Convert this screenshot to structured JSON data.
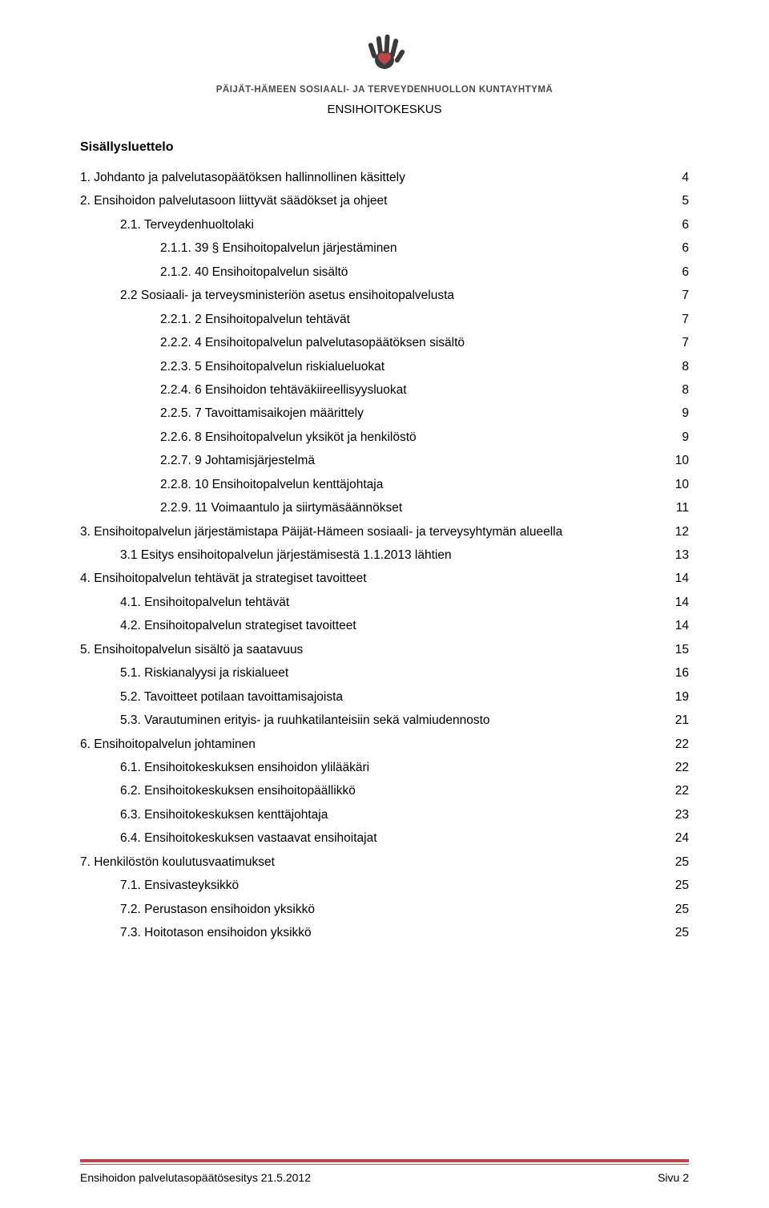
{
  "header": {
    "org_name": "PÄIJÄT-HÄMEEN SOSIAALI- JA TERVEYDENHUOLLON KUNTAYHTYMÄ",
    "subtitle": "ENSIHOITOKESKUS",
    "logo_colors": {
      "hand": "#3b3b3b",
      "heart": "#b9474b"
    }
  },
  "toc_title": "Sisällysluettelo",
  "toc": [
    {
      "level": 0,
      "label": "1. Johdanto ja palvelutasopäätöksen hallinnollinen käsittely",
      "page": "4"
    },
    {
      "level": 0,
      "label": "2. Ensihoidon palvelutasoon liittyvät säädökset ja ohjeet",
      "page": "5"
    },
    {
      "level": 1,
      "label": "2.1. Terveydenhuoltolaki",
      "page": "6"
    },
    {
      "level": 2,
      "label": "2.1.1. 39 § Ensihoitopalvelun järjestäminen",
      "page": "6"
    },
    {
      "level": 2,
      "label": "2.1.2. 40 Ensihoitopalvelun sisältö",
      "page": "6"
    },
    {
      "level": 1,
      "label": "2.2 Sosiaali- ja terveysministeriön asetus ensihoitopalvelusta",
      "page": "7"
    },
    {
      "level": 2,
      "label": "2.2.1. 2 Ensihoitopalvelun tehtävät",
      "page": "7"
    },
    {
      "level": 2,
      "label": "2.2.2. 4 Ensihoitopalvelun palvelutasopäätöksen sisältö",
      "page": "7"
    },
    {
      "level": 2,
      "label": "2.2.3. 5 Ensihoitopalvelun riskialueluokat",
      "page": "8"
    },
    {
      "level": 2,
      "label": "2.2.4. 6 Ensihoidon tehtäväkiireellisyysluokat",
      "page": "8"
    },
    {
      "level": 2,
      "label": "2.2.5. 7 Tavoittamisaikojen määrittely",
      "page": "9"
    },
    {
      "level": 2,
      "label": "2.2.6. 8 Ensihoitopalvelun yksiköt ja henkilöstö",
      "page": "9"
    },
    {
      "level": 2,
      "label": "2.2.7. 9 Johtamisjärjestelmä",
      "page": "10"
    },
    {
      "level": 2,
      "label": "2.2.8. 10 Ensihoitopalvelun kenttäjohtaja",
      "page": "10"
    },
    {
      "level": 2,
      "label": "2.2.9. 11 Voimaantulo ja siirtymäsäännökset",
      "page": "11"
    },
    {
      "level": 0,
      "label": "3. Ensihoitopalvelun järjestämistapa Päijät-Hämeen sosiaali- ja terveysyhtymän alueella",
      "page": "12"
    },
    {
      "level": 1,
      "label": "3.1 Esitys ensihoitopalvelun järjestämisestä 1.1.2013 lähtien",
      "page": "13"
    },
    {
      "level": 0,
      "label": "4. Ensihoitopalvelun tehtävät ja strategiset tavoitteet",
      "page": "14"
    },
    {
      "level": 1,
      "label": "4.1. Ensihoitopalvelun tehtävät",
      "page": "14"
    },
    {
      "level": 1,
      "label": "4.2. Ensihoitopalvelun strategiset tavoitteet",
      "page": "14"
    },
    {
      "level": 0,
      "label": "5. Ensihoitopalvelun sisältö ja saatavuus",
      "page": "15"
    },
    {
      "level": 1,
      "label": "5.1. Riskianalyysi ja riskialueet",
      "page": "16"
    },
    {
      "level": 1,
      "label": "5.2. Tavoitteet potilaan tavoittamisajoista",
      "page": "19"
    },
    {
      "level": 1,
      "label": "5.3. Varautuminen erityis- ja ruuhkatilanteisiin sekä valmiudennosto",
      "page": "21"
    },
    {
      "level": 0,
      "label": "6. Ensihoitopalvelun johtaminen",
      "page": "22"
    },
    {
      "level": 1,
      "label": "6.1. Ensihoitokeskuksen ensihoidon ylilääkäri",
      "page": "22"
    },
    {
      "level": 1,
      "label": "6.2. Ensihoitokeskuksen ensihoitopäällikkö",
      "page": "22"
    },
    {
      "level": 1,
      "label": "6.3. Ensihoitokeskuksen kenttäjohtaja",
      "page": "23"
    },
    {
      "level": 1,
      "label": "6.4. Ensihoitokeskuksen vastaavat ensihoitajat",
      "page": "24"
    },
    {
      "level": 0,
      "label": "7. Henkilöstön koulutusvaatimukset",
      "page": "25"
    },
    {
      "level": 1,
      "label": "7.1. Ensivasteyksikkö",
      "page": "25"
    },
    {
      "level": 1,
      "label": "7.2. Perustason ensihoidon yksikkö",
      "page": "25"
    },
    {
      "level": 1,
      "label": "7.3. Hoitotason ensihoidon yksikkö",
      "page": "25"
    }
  ],
  "footer": {
    "left": "Ensihoidon palvelutasopäätösesitys 21.5.2012",
    "right": "Sivu 2",
    "line_color": "#b9474b"
  }
}
